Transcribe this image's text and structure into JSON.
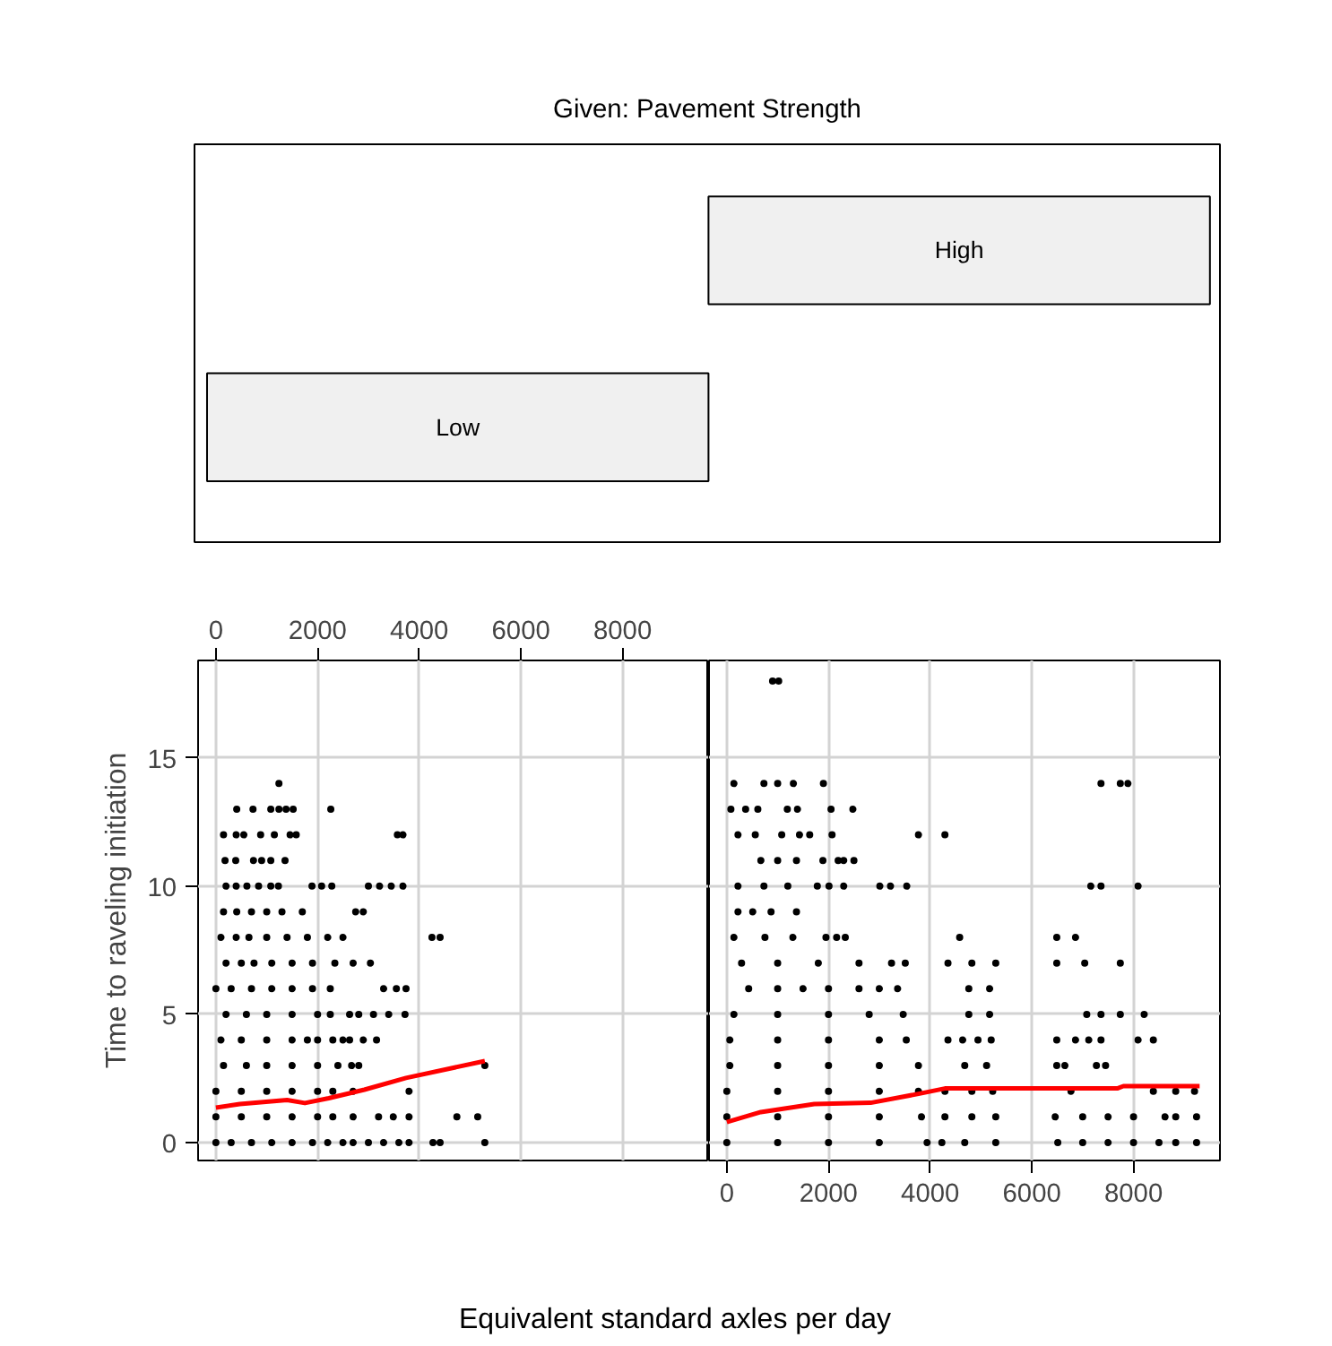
{
  "chart_data": [
    {
      "type": "other",
      "title": "Given: Pavement Strength",
      "annotations": [
        "High",
        "Low"
      ]
    },
    {
      "type": "scatter",
      "ylabel": "Time to raveling initiation",
      "xlim": [
        -350,
        9700
      ],
      "xticks": [
        0,
        2000,
        4000,
        6000,
        8000
      ],
      "ylim": [
        -0.7,
        18.8
      ],
      "yticks": [
        0,
        5,
        10,
        15
      ],
      "grid": true,
      "marker": "circle",
      "series": [
        {
          "type": "scatter",
          "color": "#000000",
          "x": [
            1240,
            410,
            730,
            1080,
            1240,
            1380,
            1520,
            2260,
            150,
            400,
            550,
            880,
            1150,
            1460,
            1580,
            3570,
            3680,
            180,
            390,
            740,
            900,
            1080,
            1360,
            200,
            400,
            610,
            840,
            1080,
            1230,
            1890,
            2080,
            2280,
            3000,
            3220,
            3450,
            3680,
            150,
            410,
            700,
            1000,
            1300,
            1700,
            2750,
            2900,
            100,
            400,
            650,
            1000,
            1400,
            1800,
            2200,
            2500,
            4250,
            4410,
            200,
            500,
            750,
            1100,
            1500,
            1900,
            2340,
            2700,
            3040,
            0,
            300,
            700,
            1100,
            1500,
            1900,
            2250,
            3300,
            3550,
            3740,
            200,
            600,
            1000,
            1500,
            2000,
            2250,
            2630,
            2810,
            3100,
            3400,
            3720,
            100,
            500,
            1000,
            1500,
            1800,
            2000,
            2300,
            2500,
            2630,
            2900,
            3160,
            150,
            600,
            1000,
            1500,
            2000,
            2400,
            2670,
            2810,
            5290,
            0,
            500,
            1000,
            1500,
            2000,
            2300,
            2700,
            3800,
            0,
            500,
            1000,
            1500,
            2000,
            2300,
            2700,
            3200,
            3490,
            3800,
            4740,
            5150,
            0,
            300,
            700,
            1100,
            1500,
            1900,
            2200,
            2500,
            2700,
            3000,
            3300,
            3600,
            3800,
            4270,
            4410,
            5290
          ],
          "values": [
            14,
            13,
            13,
            13,
            13,
            13,
            13,
            13,
            12,
            12,
            12,
            12,
            12,
            12,
            12,
            12,
            12,
            11,
            11,
            11,
            11,
            11,
            11,
            10,
            10,
            10,
            10,
            10,
            10,
            10,
            10,
            10,
            10,
            10,
            10,
            10,
            9,
            9,
            9,
            9,
            9,
            9,
            9,
            9,
            8,
            8,
            8,
            8,
            8,
            8,
            8,
            8,
            8,
            8,
            7,
            7,
            7,
            7,
            7,
            7,
            7,
            7,
            7,
            6,
            6,
            6,
            6,
            6,
            6,
            6,
            6,
            6,
            6,
            5,
            5,
            5,
            5,
            5,
            5,
            5,
            5,
            5,
            5,
            5,
            4,
            4,
            4,
            4,
            4,
            4,
            4,
            4,
            4,
            4,
            4,
            3,
            3,
            3,
            3,
            3,
            3,
            3,
            3,
            3,
            2,
            2,
            2,
            2,
            2,
            2,
            2,
            2,
            1,
            1,
            1,
            1,
            1,
            1,
            1,
            1,
            1,
            1,
            1,
            1,
            0,
            0,
            0,
            0,
            0,
            0,
            0,
            0,
            0,
            0,
            0,
            0,
            0,
            0,
            0,
            0
          ]
        },
        {
          "type": "line",
          "color": "#ff0000",
          "marker": "none",
          "x": [
            0,
            470,
            1400,
            1750,
            2220,
            2920,
            3740,
            5290
          ],
          "values": [
            1.36,
            1.5,
            1.66,
            1.54,
            1.73,
            2.06,
            2.52,
            3.18
          ]
        }
      ]
    },
    {
      "type": "scatter",
      "xlabel": "Equivalent standard axles per day",
      "xlim": [
        -350,
        9700
      ],
      "xticks": [
        0,
        2000,
        4000,
        6000,
        8000
      ],
      "ylim": [
        -0.7,
        18.8
      ],
      "yticks": [
        0,
        5,
        10,
        15
      ],
      "tick_labels": "x",
      "grid": true,
      "marker": "circle",
      "series": [
        {
          "type": "scatter",
          "color": "#000000",
          "x": [
            900,
            1020,
            140,
            730,
            1000,
            1310,
            1900,
            7360,
            7740,
            7890,
            80,
            370,
            610,
            1190,
            1390,
            2050,
            2480,
            220,
            560,
            1080,
            1430,
            1630,
            2070,
            3770,
            4290,
            670,
            1000,
            1370,
            1890,
            2190,
            2300,
            2500,
            220,
            730,
            1200,
            1780,
            2010,
            2300,
            3010,
            3220,
            3540,
            7160,
            7360,
            8090,
            220,
            510,
            870,
            1370,
            140,
            750,
            1300,
            1950,
            2160,
            2330,
            4580,
            6490,
            6860,
            290,
            1000,
            1800,
            2600,
            3240,
            3510,
            4350,
            4820,
            5290,
            6490,
            7040,
            7740,
            430,
            1000,
            1500,
            2000,
            2600,
            3000,
            3360,
            4760,
            5170,
            140,
            1000,
            2000,
            2800,
            3470,
            4760,
            5170,
            7080,
            7360,
            7740,
            8210,
            60,
            1000,
            2000,
            3000,
            3530,
            4350,
            4640,
            4940,
            5200,
            6490,
            6860,
            7120,
            7360,
            8090,
            8390,
            60,
            1000,
            2000,
            3000,
            3770,
            4680,
            5110,
            6490,
            6650,
            7270,
            7450,
            0,
            1000,
            2000,
            3000,
            3770,
            4290,
            4820,
            5230,
            6770,
            8390,
            8830,
            9200,
            0,
            1000,
            2000,
            3000,
            3830,
            4290,
            4820,
            5290,
            6460,
            7000,
            7500,
            8000,
            8620,
            8830,
            9240,
            0,
            1000,
            2000,
            3000,
            3940,
            4230,
            4680,
            5290,
            6510,
            7000,
            7500,
            8000,
            8500,
            8830,
            9240
          ],
          "values": [
            18,
            18,
            14,
            14,
            14,
            14,
            14,
            14,
            14,
            14,
            13,
            13,
            13,
            13,
            13,
            13,
            13,
            12,
            12,
            12,
            12,
            12,
            12,
            12,
            12,
            11,
            11,
            11,
            11,
            11,
            11,
            11,
            10,
            10,
            10,
            10,
            10,
            10,
            10,
            10,
            10,
            10,
            10,
            10,
            9,
            9,
            9,
            9,
            8,
            8,
            8,
            8,
            8,
            8,
            8,
            8,
            8,
            7,
            7,
            7,
            7,
            7,
            7,
            7,
            7,
            7,
            7,
            7,
            7,
            6,
            6,
            6,
            6,
            6,
            6,
            6,
            6,
            6,
            5,
            5,
            5,
            5,
            5,
            5,
            5,
            5,
            5,
            5,
            5,
            4,
            4,
            4,
            4,
            4,
            4,
            4,
            4,
            4,
            4,
            4,
            4,
            4,
            4,
            4,
            3,
            3,
            3,
            3,
            3,
            3,
            3,
            3,
            3,
            3,
            3,
            2,
            2,
            2,
            2,
            2,
            2,
            2,
            2,
            2,
            2,
            2,
            2,
            1,
            1,
            1,
            1,
            1,
            1,
            1,
            1,
            1,
            1,
            1,
            1,
            1,
            1,
            1,
            0,
            0,
            0,
            0,
            0,
            0,
            0,
            0,
            0,
            0,
            0,
            0,
            0,
            0,
            0
          ]
        },
        {
          "type": "line",
          "color": "#ff0000",
          "marker": "none",
          "x": [
            0,
            670,
            1720,
            2830,
            3770,
            4290,
            7680,
            7800,
            9300
          ],
          "values": [
            0.8,
            1.19,
            1.5,
            1.55,
            1.9,
            2.11,
            2.11,
            2.2,
            2.2
          ]
        }
      ]
    }
  ]
}
